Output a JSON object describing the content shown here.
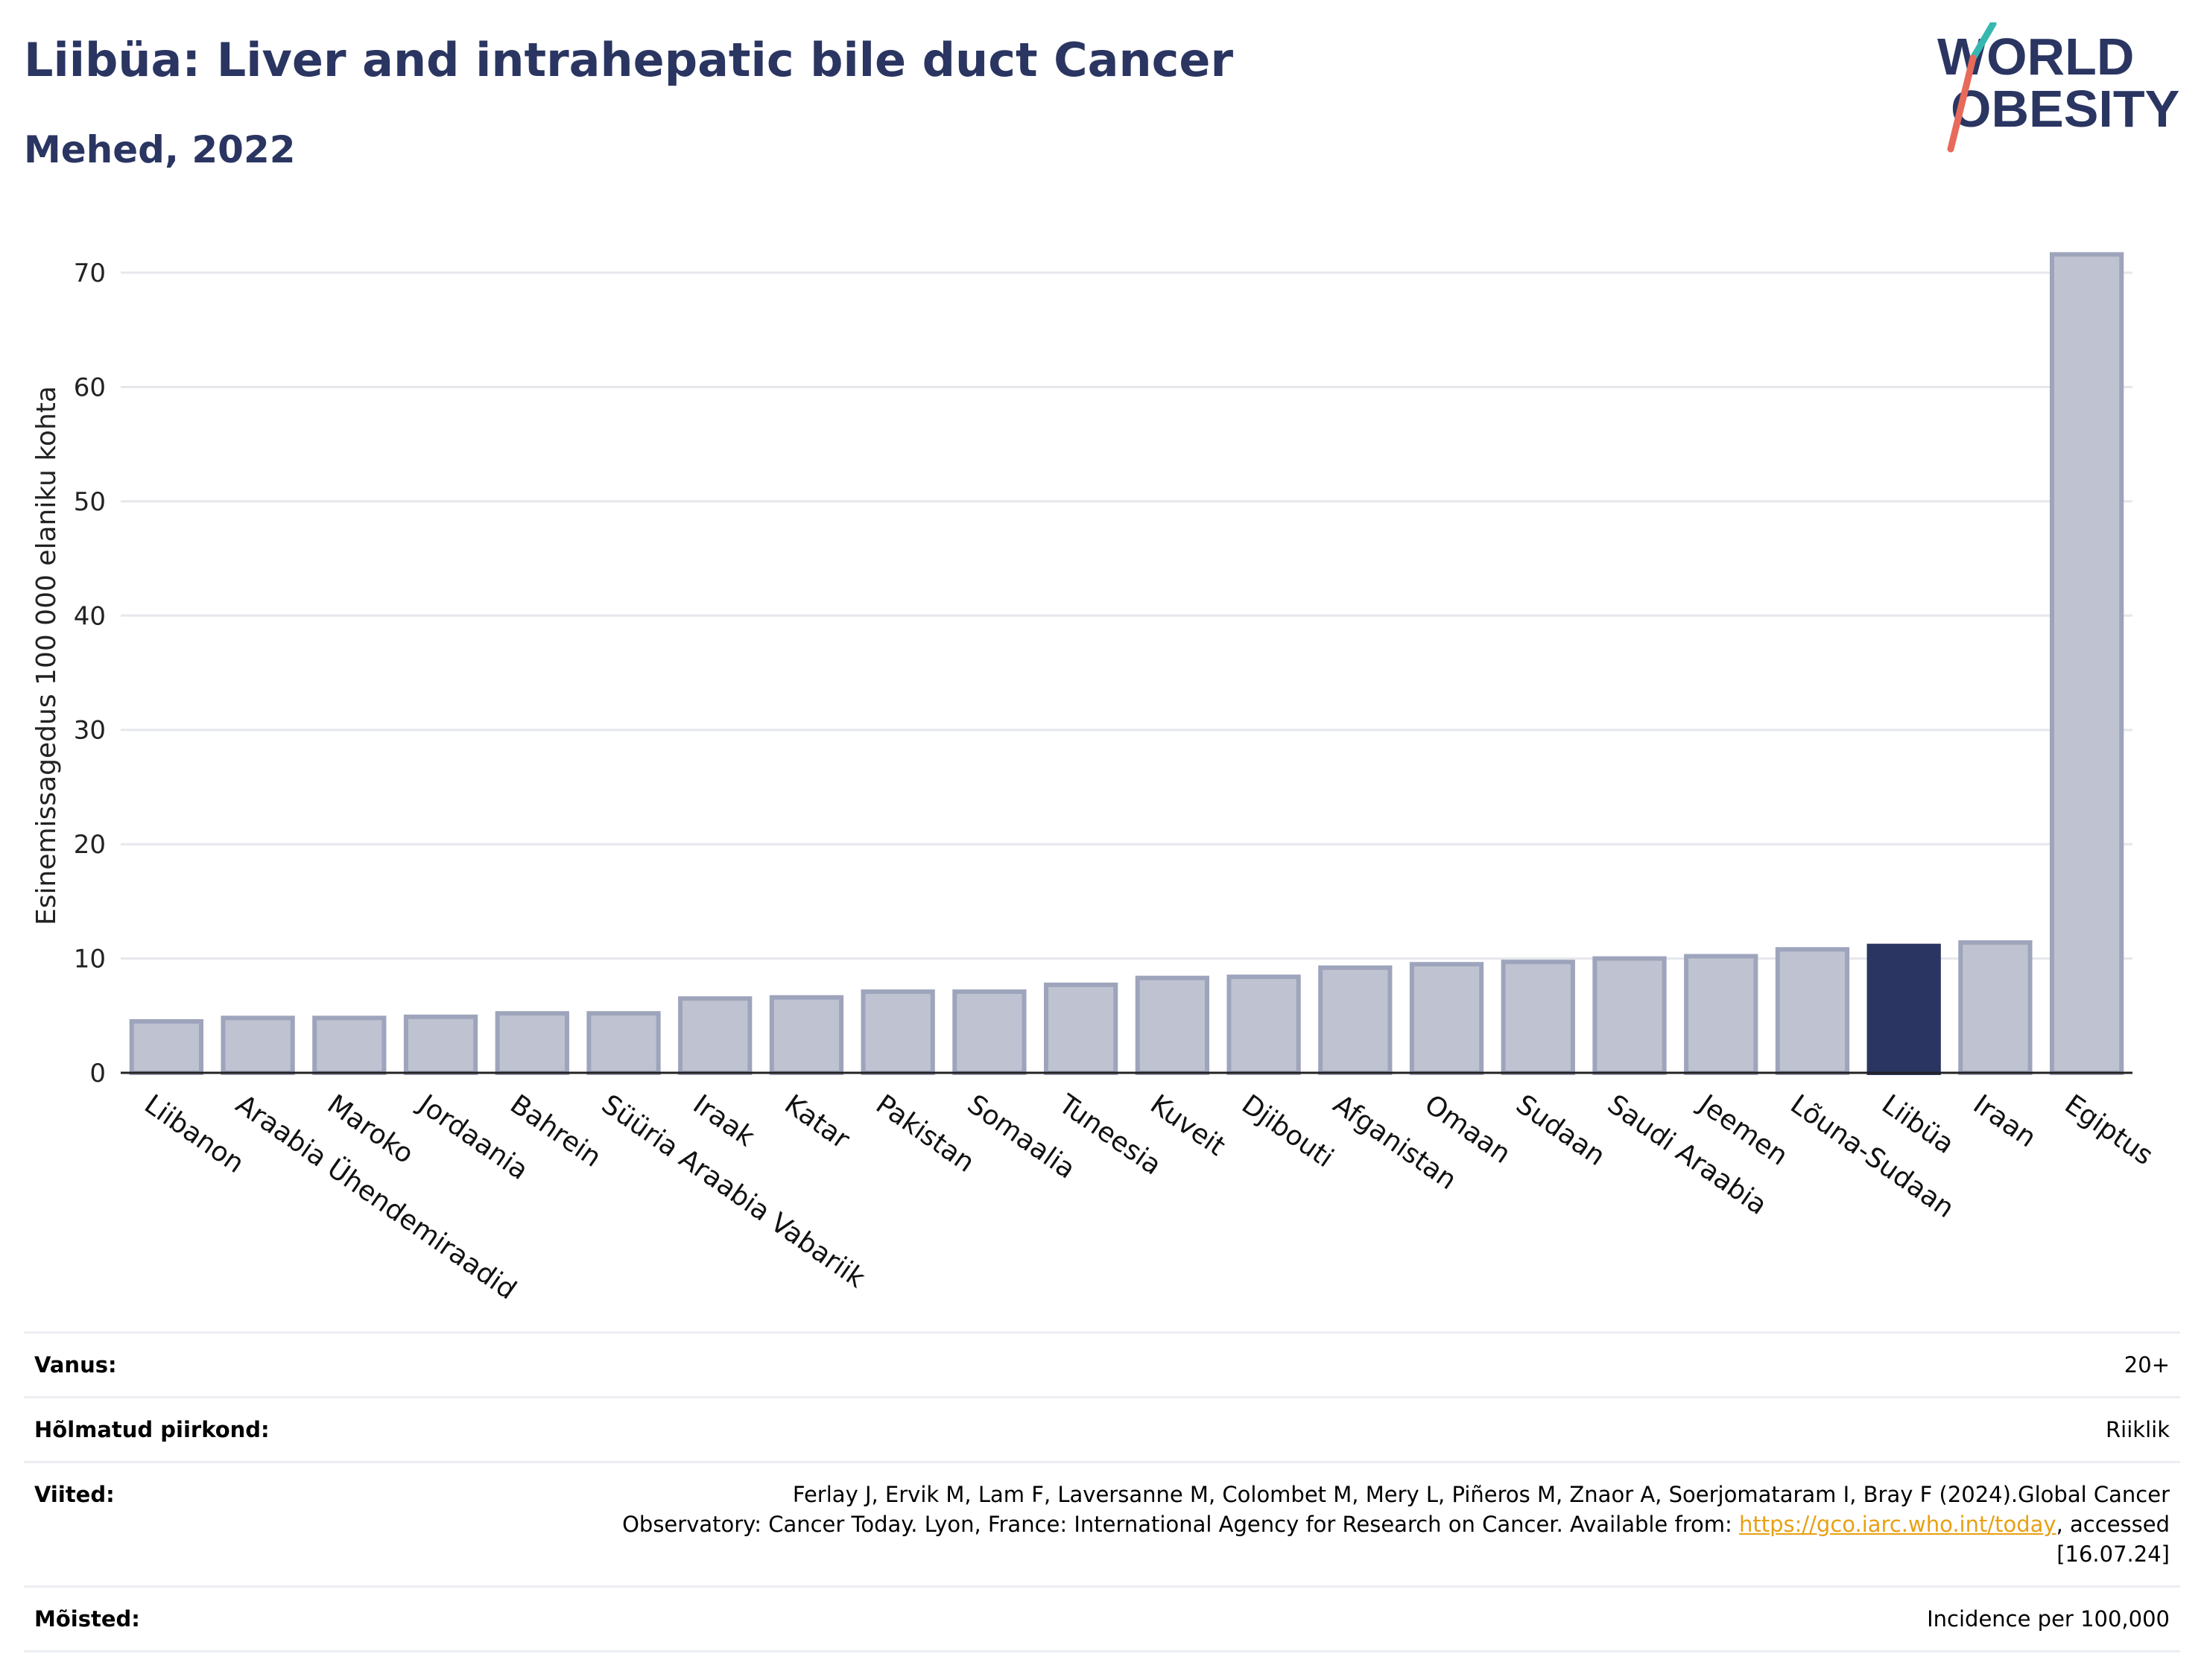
{
  "header": {
    "title": "Liibüa: Liver and intrahepatic bile duct Cancer",
    "subtitle": "Mehed, 2022"
  },
  "logo": {
    "line1": "WORLD",
    "line2": "OBESITY"
  },
  "chart_data": {
    "type": "bar",
    "ylabel": "Esinemissagedus 100 000 elaniku kohta",
    "xlabel": "",
    "ylim": [
      0,
      73
    ],
    "yticks": [
      0,
      10,
      20,
      30,
      40,
      50,
      60,
      70
    ],
    "grid": true,
    "highlight": "Liibüa",
    "colors": {
      "bar": "#bfc3d1",
      "bar_edge": "#9ea4bb",
      "highlight": "#2a3561",
      "grid": "#e6e7ec"
    },
    "categories": [
      "Liibanon",
      "Araabia Ühendemiraadid",
      "Maroko",
      "Jordaania",
      "Bahrein",
      "Süüria Araabia Vabariik",
      "Iraak",
      "Katar",
      "Pakistan",
      "Somaalia",
      "Tuneesia",
      "Kuveit",
      "Djibouti",
      "Afganistan",
      "Omaan",
      "Sudaan",
      "Saudi Araabia",
      "Jeemen",
      "Lõuna-Sudaan",
      "Liibüa",
      "Iraan",
      "Egiptus"
    ],
    "values": [
      4.5,
      4.8,
      4.8,
      4.9,
      5.2,
      5.2,
      6.5,
      6.6,
      7.1,
      7.1,
      7.7,
      8.3,
      8.4,
      9.2,
      9.5,
      9.7,
      10.0,
      10.2,
      10.8,
      11.1,
      11.4,
      71.6
    ]
  },
  "info": {
    "rows": [
      {
        "label": "Vanus:",
        "value": "20+"
      },
      {
        "label": "Hõlmatud piirkond:",
        "value": "Riiklik"
      },
      {
        "label": "Mõisted:",
        "value": "Incidence per 100,000"
      }
    ],
    "references": {
      "label": "Viited:",
      "line1": "Ferlay J, Ervik M, Lam F, Laversanne M, Colombet M, Mery L, Piñeros M, Znaor A, Soerjomataram I, Bray F (2024).Global Cancer",
      "line2": "Observatory: Cancer Today. Lyon, France: International Agency for Research on Cancer. Available from: ",
      "link": "https://gco.iarc.who.int/today",
      "line3": ", accessed [16.07.24]"
    }
  }
}
